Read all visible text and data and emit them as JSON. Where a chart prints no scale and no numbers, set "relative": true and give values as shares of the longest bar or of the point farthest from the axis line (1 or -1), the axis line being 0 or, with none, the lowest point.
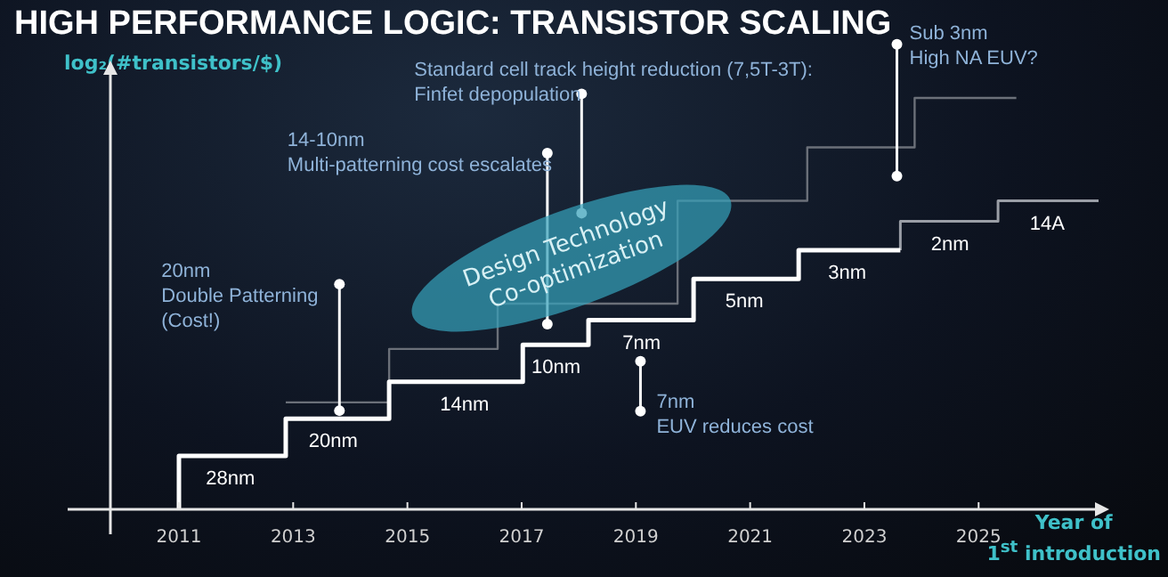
{
  "chart_data": {
    "type": "step",
    "title": "HIGH PERFORMANCE LOGIC: TRANSISTOR SCALING",
    "ylabel": "log₂(#transistors/$)",
    "xlabel": "Year of 1$^{st}$ introduction",
    "relative": true,
    "legend": false,
    "grid": false,
    "xlim": [
      2009.8,
      2027.1
    ],
    "xticks": [
      2011,
      2013,
      2015,
      2017,
      2019,
      2021,
      2023,
      2025
    ],
    "series": [
      {
        "color": "#ffffff",
        "x": [
          2011,
          2011,
          2012.87,
          2014.68,
          2017.02,
          2018.17,
          2020.01,
          2021.85,
          2023.63
        ],
        "values": [
          0,
          0.13,
          0.22,
          0.31,
          0.4,
          0.46,
          0.56,
          0.63,
          0.63
        ]
      },
      {
        "color": "#9a9ea6",
        "x": [
          2023.63,
          2023.63,
          2025.34,
          2027.1
        ],
        "values": [
          0.63,
          0.7,
          0.75,
          0.75
        ]
      },
      {
        "color": "#6b7079",
        "x": [
          2012.87,
          2014.68,
          2016.58,
          2019.73,
          2022.0,
          2023.88,
          2025.66
        ],
        "values": [
          0.26,
          0.39,
          0.5,
          0.75,
          0.88,
          1.0,
          1.0
        ]
      }
    ],
    "annotations": [
      "Design Technology\nCo-optimization",
      {
        "text": "20nm\nDouble Patterning\n(Cost!)",
        "x": 2013.81,
        "y": 0.24
      },
      {
        "text": "14-10nm\nMulti-patterning cost escalates",
        "x": 2017.45,
        "y": 0.45
      },
      {
        "text": "Standard cell track height reduction (7,5T-3T):\nFinfet depopulation",
        "x": 2018.05,
        "y": 0.72
      },
      {
        "text": "Sub 3nm\nHigh NA EUV?",
        "x": 2023.57,
        "y": 0.81
      },
      {
        "text": "7nm\nEUV reduces cost",
        "x": 2019.08,
        "y": 0.36
      },
      {
        "text": "28nm",
        "x": 2011.9,
        "y": 0.13
      },
      {
        "text": "20nm",
        "x": 2013.7,
        "y": 0.22
      },
      {
        "text": "14nm",
        "x": 2016.0,
        "y": 0.31
      },
      {
        "text": "10nm",
        "x": 2017.6,
        "y": 0.4
      },
      {
        "text": "7nm",
        "x": 2019.1,
        "y": 0.46
      },
      {
        "text": "5nm",
        "x": 2020.9,
        "y": 0.56
      },
      {
        "text": "3nm",
        "x": 2022.7,
        "y": 0.63
      },
      {
        "text": "2nm",
        "x": 2024.5,
        "y": 0.7
      },
      {
        "text": "14A",
        "x": 2026.2,
        "y": 0.75
      }
    ]
  }
}
